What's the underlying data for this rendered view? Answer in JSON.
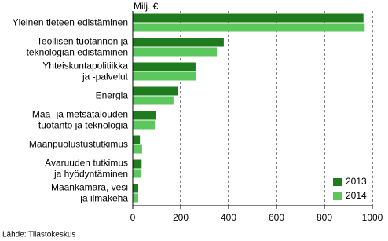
{
  "chart_data": {
    "type": "bar",
    "orientation": "horizontal",
    "title": "Milj. €",
    "source": "Lähde: Tilastokeskus",
    "categories": [
      [
        "Yleinen tieteen edistäminen"
      ],
      [
        "Teollisen tuotannon ja",
        "teknologian edistäminen"
      ],
      [
        "Yhteiskuntapolitiikka",
        "ja -palvelut"
      ],
      [
        "Energia"
      ],
      [
        "Maa- ja metsätalouden",
        "tuotanto ja teknologia"
      ],
      [
        "Maanpuolustustutkimus"
      ],
      [
        "Avaruuden tutkimus",
        "ja hyödyntäminen"
      ],
      [
        "Maankamara, vesi",
        "ja ilmakehä"
      ]
    ],
    "series": [
      {
        "name": "2013",
        "color": "#1e7b1e",
        "values": [
          963,
          380,
          262,
          187,
          95,
          30,
          37,
          23
        ]
      },
      {
        "name": "2014",
        "color": "#5cc75c",
        "values": [
          968,
          351,
          263,
          170,
          92,
          39,
          35,
          23
        ]
      }
    ],
    "xlim": [
      0,
      1000
    ],
    "xticks": [
      0,
      200,
      400,
      600,
      800,
      1000
    ],
    "grid": true,
    "legend": "lower-right"
  }
}
